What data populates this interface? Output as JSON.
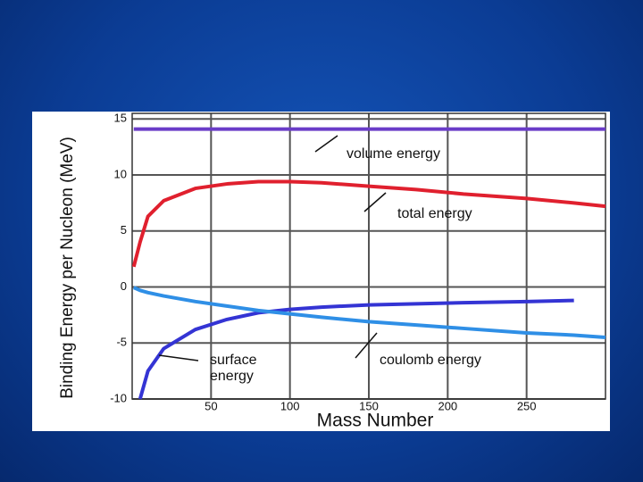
{
  "chart_data": {
    "type": "line",
    "y_label": "Binding Energy per Nucleon (MeV)",
    "x_label": "Mass Number",
    "annotations": [
      "volume energy",
      "total energy",
      "coulomb energy",
      "surface",
      "energy"
    ],
    "x": [
      1,
      5,
      10,
      20,
      40,
      60,
      80,
      100,
      120,
      150,
      180,
      210,
      250,
      280,
      300
    ],
    "series": [
      {
        "name": "volume energy",
        "color": "#6a3cc8",
        "values": [
          14.1,
          14.1,
          14.1,
          14.1,
          14.1,
          14.1,
          14.1,
          14.1,
          14.1,
          14.1,
          14.1,
          14.1,
          14.1,
          14.1,
          14.1
        ]
      },
      {
        "name": "total energy",
        "color": "#e0202e",
        "values": [
          1.8,
          4.0,
          6.3,
          7.7,
          8.8,
          9.2,
          9.4,
          9.4,
          9.3,
          9.0,
          8.7,
          8.3,
          7.9,
          7.5,
          7.2
        ]
      },
      {
        "name": "surface energy",
        "color": "#3434d4",
        "values": [
          null,
          -10,
          -7.5,
          -5.5,
          -3.8,
          -2.9,
          -2.3,
          -2.0,
          -1.8,
          -1.6,
          -1.5,
          -1.4,
          -1.3,
          -1.2,
          null
        ]
      },
      {
        "name": "coulomb energy",
        "color": "#2f8fe6",
        "values": [
          -0.05,
          -0.3,
          -0.5,
          -0.8,
          -1.3,
          -1.7,
          -2.1,
          -2.4,
          -2.7,
          -3.1,
          -3.4,
          -3.7,
          -4.1,
          -4.3,
          -4.5
        ]
      }
    ],
    "xlim": [
      0,
      300
    ],
    "xticks": [
      50,
      100,
      150,
      200,
      250
    ],
    "ylim": [
      -10,
      15.5
    ],
    "yticks": [
      -10,
      -5,
      0,
      5,
      10,
      15
    ],
    "grid": true
  }
}
